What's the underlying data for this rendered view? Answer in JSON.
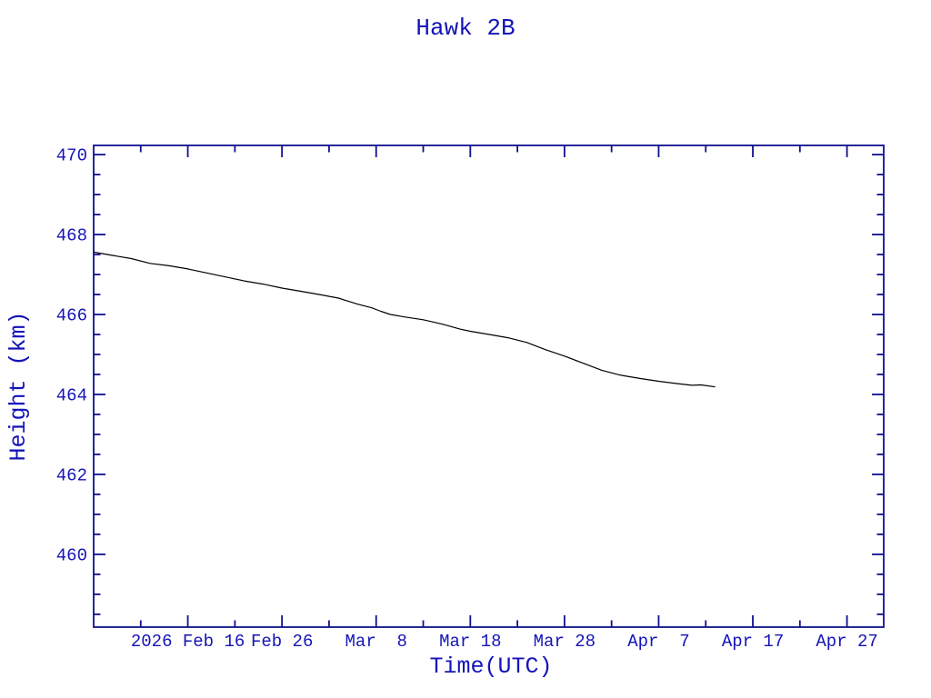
{
  "page": {
    "background_color": "#ffffff",
    "text_color": "#1414b8",
    "axis_color": "#10108e"
  },
  "chart_data": {
    "type": "line",
    "title": "Hawk 2B",
    "xlabel": "Time(UTC)",
    "ylabel": "Height (km)",
    "grid": false,
    "legend_position": "none",
    "line_color": "#000000",
    "x_unit": "days relative to chart left edge (2026 Feb 06, per axis scale)",
    "x_range_days": [
      0,
      83.9
    ],
    "x_tick_days": [
      10,
      20,
      30,
      40,
      50,
      60,
      70,
      80
    ],
    "x_tick_labels": [
      "2026 Feb 16",
      "Feb 26",
      "Mar  8",
      "Mar 18",
      "Mar 28",
      "Apr  7",
      "Apr 17",
      "Apr 27"
    ],
    "x_minor_tick_days": [
      5,
      15,
      25,
      35,
      45,
      55,
      65,
      75
    ],
    "ylim": [
      458.18,
      470.23
    ],
    "y_major_ticks": [
      460,
      462,
      464,
      466,
      468,
      470
    ],
    "y_minor_step": 0.5,
    "series": [
      {
        "name": "Hawk 2B height",
        "color": "#000000",
        "points": [
          [
            0,
            467.56
          ],
          [
            2,
            467.48
          ],
          [
            4,
            467.4
          ],
          [
            6,
            467.28
          ],
          [
            8,
            467.22
          ],
          [
            10,
            467.14
          ],
          [
            12,
            467.04
          ],
          [
            14,
            466.94
          ],
          [
            16,
            466.84
          ],
          [
            18,
            466.76
          ],
          [
            20,
            466.66
          ],
          [
            22,
            466.58
          ],
          [
            24,
            466.5
          ],
          [
            26,
            466.41
          ],
          [
            28,
            466.26
          ],
          [
            29.5,
            466.17
          ],
          [
            30.5,
            466.08
          ],
          [
            31.5,
            466.0
          ],
          [
            33,
            465.94
          ],
          [
            35,
            465.87
          ],
          [
            37,
            465.76
          ],
          [
            39,
            465.63
          ],
          [
            40,
            465.58
          ],
          [
            42,
            465.5
          ],
          [
            44,
            465.42
          ],
          [
            46,
            465.3
          ],
          [
            48,
            465.12
          ],
          [
            50,
            464.96
          ],
          [
            52,
            464.78
          ],
          [
            54,
            464.6
          ],
          [
            56,
            464.48
          ],
          [
            58,
            464.4
          ],
          [
            60,
            464.33
          ],
          [
            62,
            464.27
          ],
          [
            63.5,
            464.23
          ],
          [
            64.5,
            464.24
          ],
          [
            66,
            464.19
          ]
        ]
      }
    ]
  }
}
